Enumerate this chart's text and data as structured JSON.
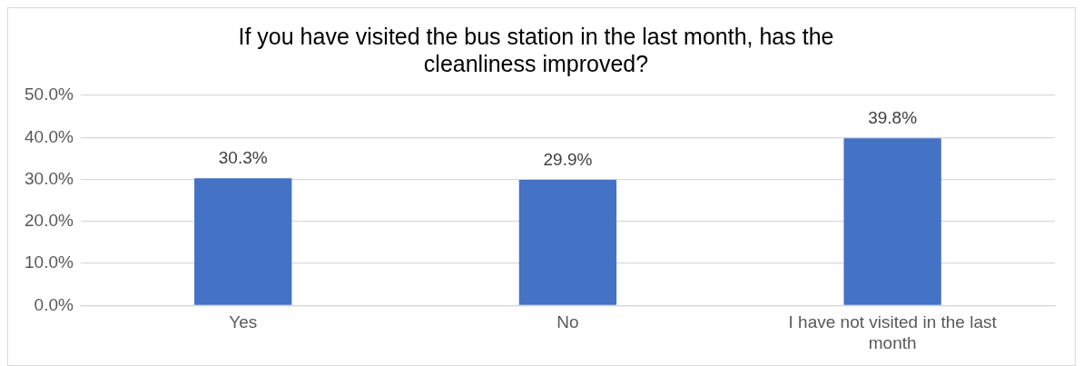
{
  "chart_data": {
    "type": "bar",
    "title": "If you have visited the bus station in the last month, has the cleanliness improved?",
    "categories": [
      "Yes",
      "No",
      "I have not visited in the last month"
    ],
    "values": [
      30.3,
      29.9,
      39.8
    ],
    "color": "#4472c4",
    "value_labels": [
      "30.3%",
      "29.9%",
      "39.8%"
    ],
    "ylim": [
      0,
      50
    ],
    "yticks": [
      {
        "value": 0,
        "label": "0.0%"
      },
      {
        "value": 10,
        "label": "10.0%"
      },
      {
        "value": 20,
        "label": "20.0%"
      },
      {
        "value": 30,
        "label": "30.0%"
      },
      {
        "value": 40,
        "label": "40.0%"
      },
      {
        "value": 50,
        "label": "50.0%"
      }
    ],
    "grid": "y",
    "legend": false
  }
}
